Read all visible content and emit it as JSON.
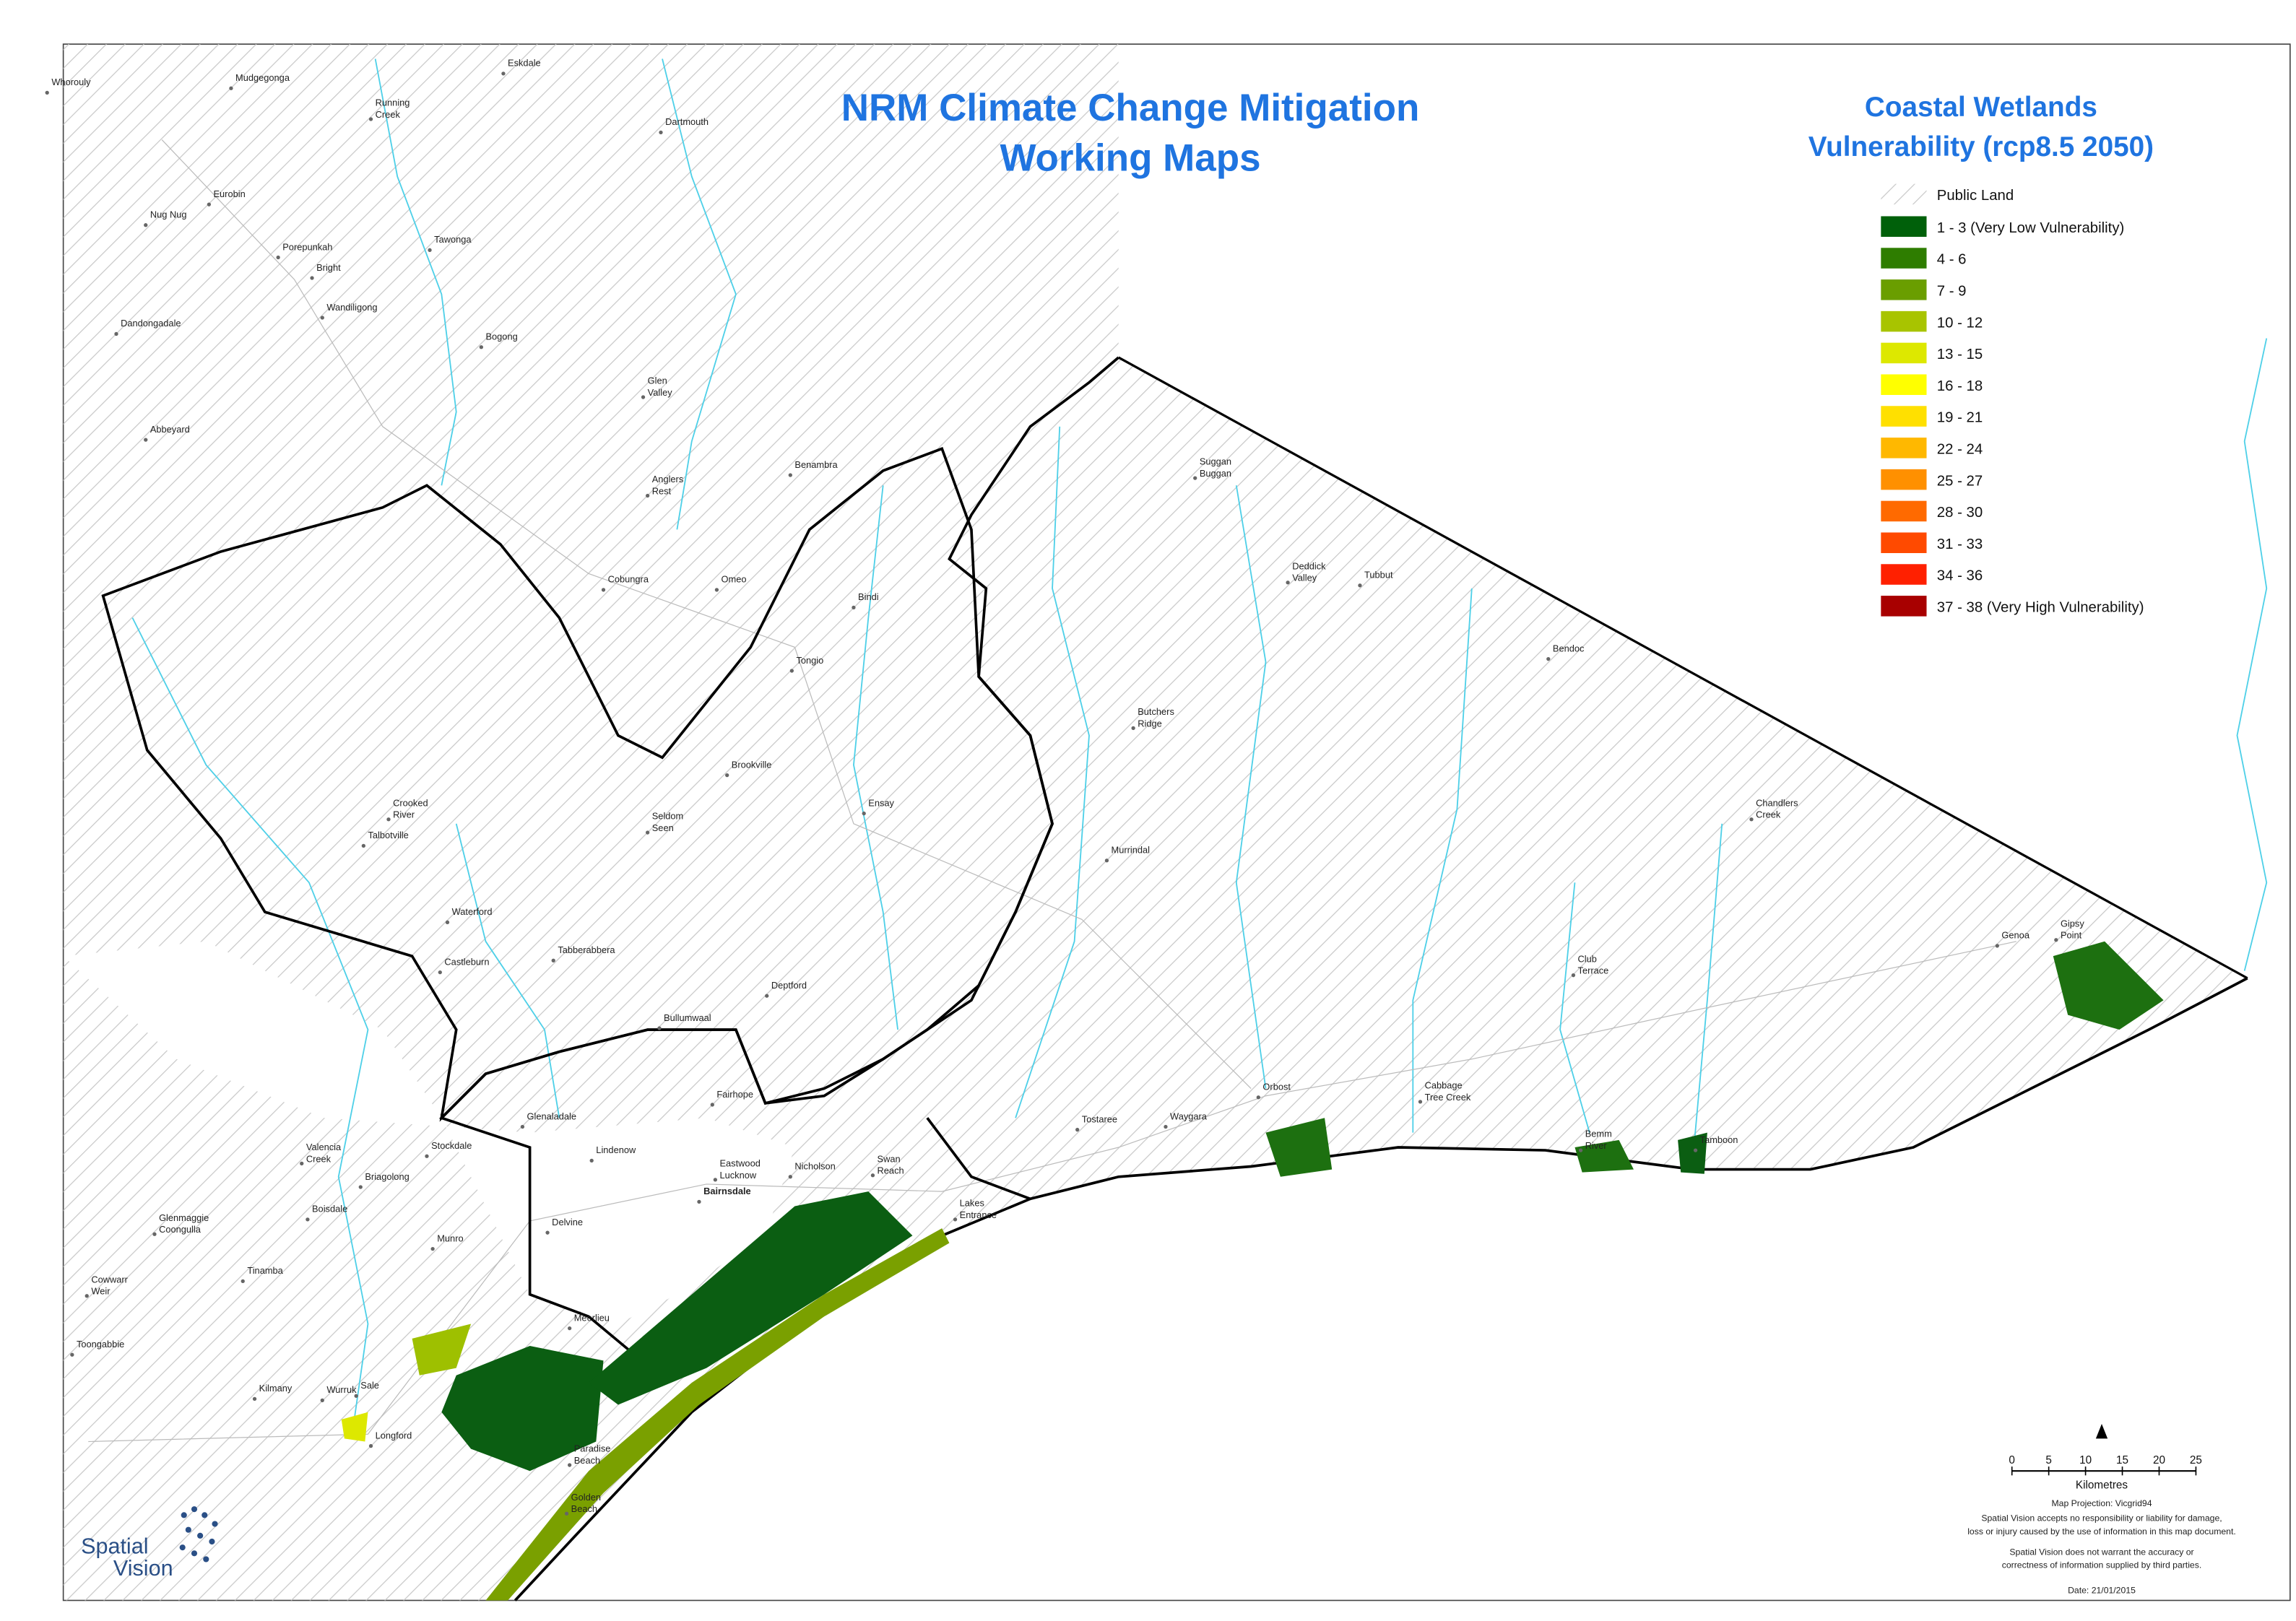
{
  "title": [
    "NRM Climate Change Mitigation",
    "Working Maps"
  ],
  "legend": {
    "title": [
      "Coastal Wetlands",
      "Vulnerability (rcp8.5 2050)"
    ],
    "public_land": "Public Land",
    "items": [
      {
        "label": "1 - 3 (Very Low Vulnerability)",
        "color": "#00600a"
      },
      {
        "label": "4 - 6",
        "color": "#2e7d00"
      },
      {
        "label": "7 - 9",
        "color": "#6a9e00"
      },
      {
        "label": "10 - 12",
        "color": "#a8c400"
      },
      {
        "label": "13 - 15",
        "color": "#dde800"
      },
      {
        "label": "16 - 18",
        "color": "#ffff00"
      },
      {
        "label": "19 - 21",
        "color": "#ffe000"
      },
      {
        "label": "22 - 24",
        "color": "#ffb800"
      },
      {
        "label": "25 - 27",
        "color": "#ff9000"
      },
      {
        "label": "28 - 30",
        "color": "#ff6a00"
      },
      {
        "label": "31 - 33",
        "color": "#ff4a00"
      },
      {
        "label": "34 - 36",
        "color": "#ff2000"
      },
      {
        "label": "37 - 38 (Very High Vulnerability)",
        "color": "#a80000"
      }
    ]
  },
  "places": [
    [
      "Whorouly"
    ],
    [
      "Mudgegonga"
    ],
    [
      "Eskdale"
    ],
    [
      "Running",
      "Creek"
    ],
    [
      "Dartmouth"
    ],
    [
      "Eurobin"
    ],
    [
      "Nug Nug"
    ],
    [
      "Porepunkah"
    ],
    [
      "Tawonga"
    ],
    [
      "Bright"
    ],
    [
      "Wandiligong"
    ],
    [
      "Dandongadale"
    ],
    [
      "Bogong"
    ],
    [
      "Glen",
      "Valley"
    ],
    [
      "Abbeyard"
    ],
    [
      "Benambra"
    ],
    [
      "Anglers",
      "Rest"
    ],
    [
      "Suggan",
      "Buggan"
    ],
    [
      "Cobungra"
    ],
    [
      "Omeo"
    ],
    [
      "Deddick",
      "Valley"
    ],
    [
      "Tubbut"
    ],
    [
      "Bindi"
    ],
    [
      "Bendoc"
    ],
    [
      "Tongio"
    ],
    [
      "Butchers",
      "Ridge"
    ],
    [
      "Brookville"
    ],
    [
      "Chandlers",
      "Creek"
    ],
    [
      "Crooked",
      "River"
    ],
    [
      "Ensay"
    ],
    [
      "Seldom",
      "Seen"
    ],
    [
      "Talbotville"
    ],
    [
      "Murrindal"
    ],
    [
      "Waterford"
    ],
    [
      "Genoa"
    ],
    [
      "Gipsy",
      "Point"
    ],
    [
      "Castleburn"
    ],
    [
      "Tabberabbera"
    ],
    [
      "Club",
      "Terrace"
    ],
    [
      "Deptford"
    ],
    [
      "Bullumwaal"
    ],
    [
      "Orbost"
    ],
    [
      "Cabbage",
      "Tree Creek"
    ],
    [
      "Fairhope"
    ],
    [
      "Tostaree"
    ],
    [
      "Waygara"
    ],
    [
      "Glenaladale"
    ],
    [
      "Bemm",
      "River"
    ],
    [
      "Tamboon"
    ],
    [
      "Valencia",
      "Creek"
    ],
    [
      "Stockdale"
    ],
    [
      "Lindenow"
    ],
    [
      "Eastwood",
      "Lucknow"
    ],
    [
      "Nicholson"
    ],
    [
      "Swan",
      "Reach"
    ],
    [
      "Briagolong"
    ],
    [
      "Bairnsdale"
    ],
    [
      "Lakes",
      "Entrance"
    ],
    [
      "Boisdale"
    ],
    [
      "Glenmaggie",
      "Coongulla"
    ],
    [
      "Delvine"
    ],
    [
      "Munro"
    ],
    [
      "Tinamba"
    ],
    [
      "Cowwarr",
      "Weir"
    ],
    [
      "Meerlieu"
    ],
    [
      "Toongabbie"
    ],
    [
      "Kilmany"
    ],
    [
      "Wurruk"
    ],
    [
      "Sale"
    ],
    [
      "Longford"
    ],
    [
      "Paradise",
      "Beach"
    ],
    [
      "Golden",
      "Beach"
    ]
  ],
  "scale": {
    "ticks": [
      0,
      5,
      10,
      15,
      20,
      25
    ],
    "unit": "Kilometres"
  },
  "notes": [
    "Map Projection: Vicgrid94",
    "Spatial Vision accepts no responsibility or liability for damage,",
    "loss or injury caused by the use of information in this map document.",
    "Spatial Vision does not warrant the accuracy or",
    "correctness of information supplied by third parties.",
    "Date: 21/01/2015"
  ],
  "logo": [
    "Spatial",
    "Vision"
  ]
}
